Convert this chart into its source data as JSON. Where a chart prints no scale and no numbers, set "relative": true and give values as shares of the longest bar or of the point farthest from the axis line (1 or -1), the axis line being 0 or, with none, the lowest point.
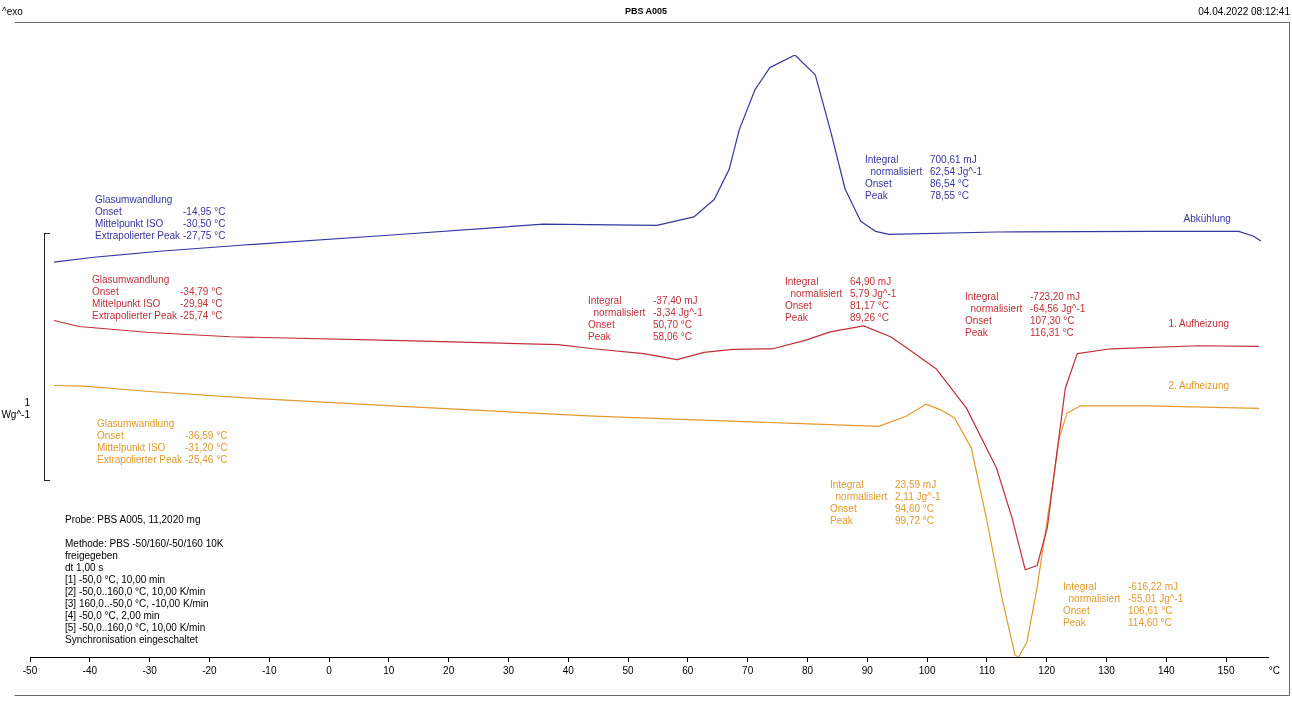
{
  "chart_data": {
    "type": "line",
    "title": "PBS A005",
    "xlabel": "°C",
    "relative": true,
    "xlim": [
      -50,
      157
    ],
    "xticks": [
      -50,
      -40,
      -30,
      -20,
      -10,
      0,
      10,
      20,
      30,
      40,
      50,
      60,
      70,
      80,
      90,
      100,
      110,
      120,
      130,
      140,
      150
    ],
    "grid": false,
    "legend": false,
    "marker": "none",
    "line_style": "solid",
    "series": [
      {
        "name": "Abkühlung",
        "color": "#3636a0",
        "x": [
          -46.0,
          -39.3,
          -28.3,
          -14.8,
          10.5,
          35.8,
          54.8,
          61.0,
          64.4,
          66.9,
          68.6,
          71.2,
          73.7,
          77.9,
          81.3,
          83.8,
          86.3,
          88.9,
          91.4,
          93.6,
          111.6,
          136.9,
          152.1,
          154.6,
          155.8
        ],
        "values": [
          0.656,
          0.664,
          0.674,
          0.684,
          0.701,
          0.719,
          0.717,
          0.731,
          0.76,
          0.81,
          0.876,
          0.942,
          0.979,
          1.0,
          0.967,
          0.876,
          0.777,
          0.724,
          0.707,
          0.702,
          0.706,
          0.707,
          0.707,
          0.699,
          0.691
        ]
      },
      {
        "name": "1. Aufheizung",
        "color": "#c0303a",
        "x": [
          -46.0,
          -41.8,
          -30.0,
          -16.5,
          10.5,
          38.3,
          44.2,
          52.6,
          58.2,
          62.7,
          67.5,
          74.2,
          79.6,
          83.8,
          89.4,
          93.9,
          96.8,
          101.5,
          106.6,
          111.6,
          114.2,
          116.4,
          118.4,
          120.1,
          121.8,
          123.1,
          125.1,
          130.7,
          145.4,
          155.5
        ],
        "values": [
          0.559,
          0.549,
          0.539,
          0.532,
          0.526,
          0.519,
          0.512,
          0.504,
          0.494,
          0.506,
          0.511,
          0.512,
          0.526,
          0.54,
          0.55,
          0.532,
          0.512,
          0.479,
          0.413,
          0.314,
          0.231,
          0.145,
          0.152,
          0.215,
          0.347,
          0.446,
          0.504,
          0.512,
          0.517,
          0.516
        ]
      },
      {
        "name": "2. Aufheizung",
        "color": "#e39a2c",
        "x": [
          -46.0,
          -41.0,
          -30.0,
          -13.2,
          10.5,
          44.2,
          77.9,
          91.9,
          96.5,
          99.8,
          102.4,
          104.6,
          107.4,
          109.9,
          112.5,
          114.7,
          115.3,
          116.7,
          118.4,
          120.9,
          122.1,
          123.4,
          125.6,
          136.9,
          155.5
        ],
        "values": [
          0.451,
          0.45,
          0.441,
          0.43,
          0.417,
          0.4,
          0.388,
          0.383,
          0.4,
          0.42,
          0.41,
          0.397,
          0.347,
          0.231,
          0.099,
          0.003,
          0.0,
          0.025,
          0.116,
          0.281,
          0.364,
          0.405,
          0.417,
          0.417,
          0.413
        ]
      }
    ],
    "annotations": [
      "^exo",
      "04.04.2022 08:12:41",
      "Glasumwandlung\nOnset\t-14,95 °C\nMittelpunkt ISO\t-30,50 °C\nExtrapolierter Peak\t-27,75 °C",
      "Glasumwandlung\nOnset\t-34,79 °C\nMittelpunkt ISO\t-29,94 °C\nExtrapolierter Peak\t-25,74 °C",
      "Glasumwandlung\nOnset\t-36,59 °C\nMittelpunkt ISO\t-31,20 °C\nExtrapolierter Peak\t-25,46 °C",
      "Integral\t-37,40 mJ\n  normalisiert\t-3,34 Jg^-1\nOnset\t50,70 °C\nPeak\t58,06 °C",
      "Integral\t64,90 mJ\n  normalisiert\t5,79 Jg^-1\nOnset\t81,17 °C\nPeak\t89,26 °C",
      "Integral\t-723,20 mJ\n  normalisiert\t-64,56 Jg^-1\nOnset\t107,30 °C\nPeak\t116,31 °C",
      "Integral\t700,61 mJ\n  normalisiert\t62,54 Jg^-1\nOnset\t86,54 °C\nPeak\t78,55 °C",
      "Integral\t23,59 mJ\n  normalisiert\t2,11 Jg^-1\nOnset\t94,60 °C\nPeak\t99,72 °C",
      "Integral\t-616,22 mJ\n  normalisiert\t-55,01 Jg^-1\nOnset\t106,61 °C\nPeak\t114,60 °C",
      "Probe: PBS A005, 11,2020 mg\n\nMethode: PBS -50/160/-50/160 10K\nfreigegeben\ndt 1,00 s\n[1] -50,0 °C, 10,00 min\n[2] -50,0..160,0 °C, 10,00 K/min\n[3] 160,0..-50,0 °C, -10,00 K/min\n[4] -50,0 °C, 2,00 min\n[5] -50,0..160,0 °C, 10,00 K/min\nSynchronisation eingeschaltet",
      "1\nWg^-1"
    ]
  }
}
